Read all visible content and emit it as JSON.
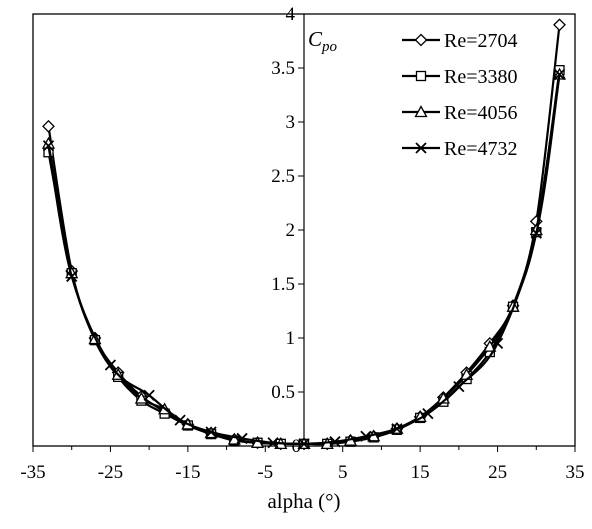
{
  "chart_data": {
    "type": "line",
    "title": "",
    "xlabel": "alpha  (°)",
    "ylabel": "C",
    "ylabel_sub": "po",
    "xlim": [
      -35,
      35
    ],
    "ylim": [
      0,
      4
    ],
    "xticks": [
      -35,
      -25,
      -15,
      -5,
      5,
      15,
      25,
      35
    ],
    "yticks": [
      0.5,
      1,
      1.5,
      2,
      2.5,
      3,
      3.5,
      4
    ],
    "ytick_labels": [
      "0.5",
      "1",
      "1.5",
      "2",
      "2.5",
      "3",
      "3.5",
      "4"
    ],
    "grid": false,
    "legend_position": "top-right",
    "series": [
      {
        "name": "Re=2704",
        "marker": "diamond",
        "x": [
          -33,
          -30,
          -27,
          -24,
          -21,
          -18,
          -15,
          -12,
          -9,
          -6,
          -3,
          0,
          3,
          6,
          9,
          12,
          15,
          18,
          21,
          24,
          27,
          30,
          33
        ],
        "y": [
          2.96,
          1.62,
          1.0,
          0.68,
          0.46,
          0.32,
          0.2,
          0.12,
          0.06,
          0.03,
          0.02,
          0.02,
          0.02,
          0.05,
          0.09,
          0.16,
          0.27,
          0.45,
          0.68,
          0.95,
          1.3,
          2.08,
          3.9
        ]
      },
      {
        "name": "Re=3380",
        "marker": "square",
        "x": [
          -33,
          -30,
          -27,
          -24,
          -21,
          -18,
          -15,
          -12,
          -9,
          -6,
          -3,
          0,
          3,
          6,
          9,
          12,
          15,
          18,
          21,
          24,
          27,
          30,
          33
        ],
        "y": [
          2.72,
          1.6,
          0.98,
          0.64,
          0.42,
          0.3,
          0.19,
          0.11,
          0.05,
          0.03,
          0.02,
          0.02,
          0.02,
          0.04,
          0.08,
          0.15,
          0.26,
          0.41,
          0.62,
          0.87,
          1.29,
          1.98,
          3.48
        ]
      },
      {
        "name": "Re=4056",
        "marker": "triangle",
        "x": [
          -33,
          -30,
          -27,
          -24,
          -21,
          -18,
          -15,
          -12,
          -9,
          -6,
          -3,
          0,
          3,
          6,
          9,
          12,
          15,
          18,
          21,
          24,
          27,
          30,
          33
        ],
        "y": [
          2.8,
          1.6,
          0.99,
          0.66,
          0.44,
          0.34,
          0.2,
          0.12,
          0.06,
          0.03,
          0.02,
          0.02,
          0.02,
          0.05,
          0.09,
          0.16,
          0.27,
          0.44,
          0.66,
          0.92,
          1.29,
          2.0,
          3.44
        ]
      },
      {
        "name": "Re=4732",
        "marker": "x",
        "x": [
          -33,
          -30,
          -25,
          -20,
          -16,
          -12,
          -8,
          -4,
          0,
          4,
          8,
          12,
          16,
          20,
          25,
          30,
          33
        ],
        "y": [
          2.78,
          1.57,
          0.75,
          0.47,
          0.24,
          0.13,
          0.07,
          0.03,
          0.02,
          0.04,
          0.09,
          0.16,
          0.3,
          0.55,
          0.95,
          1.97,
          3.44
        ]
      }
    ]
  }
}
